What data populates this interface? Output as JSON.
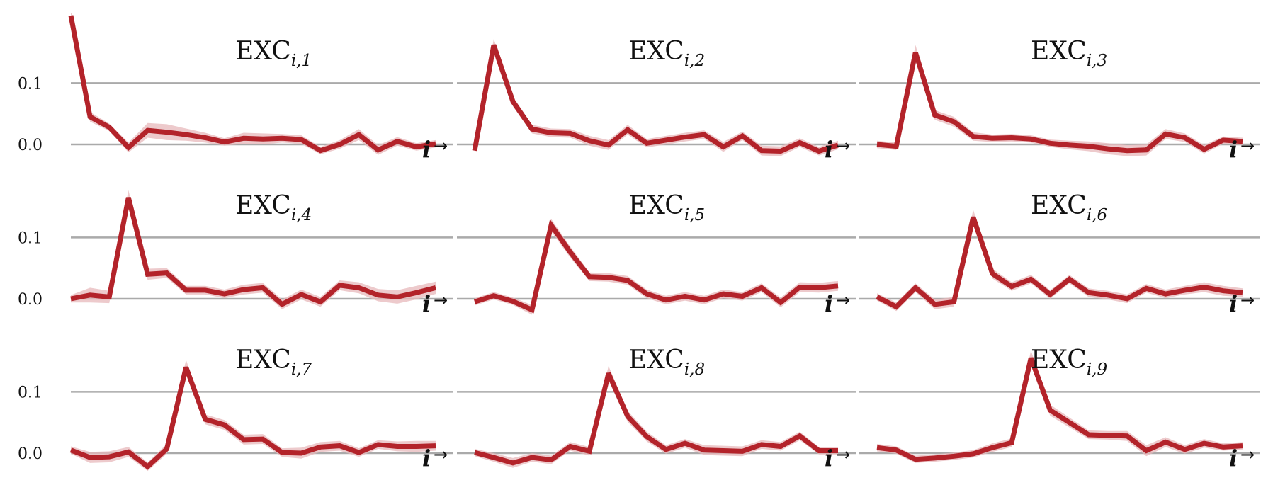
{
  "chart_data": {
    "type": "line",
    "grid_layout": {
      "rows": 3,
      "cols": 3
    },
    "line_color": "#b3232a",
    "band_color": "#e7b8bb",
    "gridline_color": "#aaaaaa",
    "ylim": [
      -0.03,
      0.21
    ],
    "yticks": [
      0.0,
      0.1
    ],
    "ytick_labels": [
      "0.0",
      "0.1"
    ],
    "x": [
      1,
      2,
      3,
      4,
      5,
      6,
      7,
      8,
      9,
      10,
      11,
      12,
      13,
      14,
      15,
      16,
      17,
      18,
      19,
      20
    ],
    "xlabel": "i",
    "xlabel_arrow": "→",
    "panels": [
      {
        "title": "EXC",
        "subscript": "i,1",
        "values": [
          0.21,
          0.045,
          0.028,
          -0.005,
          0.023,
          0.02,
          0.016,
          0.011,
          0.004,
          0.01,
          0.009,
          0.01,
          0.008,
          -0.01,
          0.0,
          0.016,
          -0.009,
          0.005,
          -0.004,
          0.001
        ],
        "band": [
          0.012,
          0.008,
          0.006,
          0.008,
          0.012,
          0.013,
          0.01,
          0.008,
          0.006,
          0.009,
          0.009,
          0.007,
          0.007,
          0.006,
          0.007,
          0.009,
          0.008,
          0.007,
          0.006,
          0.006
        ]
      },
      {
        "title": "EXC",
        "subscript": "i,2",
        "values": [
          -0.01,
          0.162,
          0.07,
          0.025,
          0.019,
          0.018,
          0.006,
          -0.001,
          0.024,
          0.002,
          0.007,
          0.012,
          0.016,
          -0.004,
          0.014,
          -0.01,
          -0.011,
          0.003,
          -0.011,
          -0.001
        ],
        "band": [
          0.008,
          0.01,
          0.008,
          0.007,
          0.007,
          0.007,
          0.008,
          0.008,
          0.008,
          0.007,
          0.007,
          0.007,
          0.007,
          0.008,
          0.007,
          0.008,
          0.008,
          0.007,
          0.007,
          0.007
        ]
      },
      {
        "title": "EXC",
        "subscript": "i,3",
        "values": [
          0.0,
          -0.003,
          0.15,
          0.048,
          0.037,
          0.013,
          0.01,
          0.011,
          0.009,
          0.002,
          -0.001,
          -0.003,
          -0.007,
          -0.01,
          -0.009,
          0.017,
          0.011,
          -0.008,
          0.007,
          0.005
        ],
        "band": [
          0.006,
          0.006,
          0.012,
          0.008,
          0.008,
          0.007,
          0.006,
          0.006,
          0.006,
          0.006,
          0.007,
          0.008,
          0.009,
          0.009,
          0.009,
          0.008,
          0.007,
          0.007,
          0.006,
          0.006
        ]
      },
      {
        "title": "EXC",
        "subscript": "i,4",
        "values": [
          0.0,
          0.006,
          0.003,
          0.165,
          0.04,
          0.042,
          0.014,
          0.014,
          0.008,
          0.015,
          0.018,
          -0.009,
          0.007,
          -0.005,
          0.022,
          0.018,
          0.006,
          0.003,
          0.01,
          0.018
        ],
        "band": [
          0.006,
          0.012,
          0.01,
          0.012,
          0.009,
          0.008,
          0.007,
          0.007,
          0.007,
          0.008,
          0.008,
          0.008,
          0.008,
          0.008,
          0.008,
          0.009,
          0.01,
          0.011,
          0.011,
          0.01
        ]
      },
      {
        "title": "EXC",
        "subscript": "i,5",
        "values": [
          -0.005,
          0.005,
          -0.004,
          -0.018,
          0.12,
          0.076,
          0.036,
          0.035,
          0.03,
          0.008,
          -0.002,
          0.004,
          -0.002,
          0.008,
          0.004,
          0.018,
          -0.006,
          0.019,
          0.018,
          0.021
        ],
        "band": [
          0.006,
          0.006,
          0.006,
          0.008,
          0.01,
          0.009,
          0.007,
          0.007,
          0.007,
          0.007,
          0.007,
          0.007,
          0.007,
          0.007,
          0.007,
          0.007,
          0.008,
          0.008,
          0.008,
          0.008
        ]
      },
      {
        "title": "EXC",
        "subscript": "i,6",
        "values": [
          0.003,
          -0.013,
          0.018,
          -0.009,
          -0.005,
          0.133,
          0.041,
          0.02,
          0.032,
          0.007,
          0.032,
          0.01,
          0.006,
          0.0,
          0.017,
          0.008,
          0.014,
          0.019,
          0.013,
          0.01
        ],
        "band": [
          0.006,
          0.007,
          0.007,
          0.008,
          0.008,
          0.012,
          0.008,
          0.007,
          0.007,
          0.007,
          0.007,
          0.007,
          0.007,
          0.007,
          0.007,
          0.007,
          0.007,
          0.008,
          0.008,
          0.007
        ]
      },
      {
        "title": "EXC",
        "subscript": "i,7",
        "values": [
          0.005,
          -0.007,
          -0.006,
          0.002,
          -0.022,
          0.007,
          0.14,
          0.055,
          0.046,
          0.022,
          0.023,
          0.001,
          0.0,
          0.01,
          0.012,
          0.001,
          0.014,
          0.011,
          0.011,
          0.012
        ],
        "band": [
          0.006,
          0.009,
          0.009,
          0.008,
          0.007,
          0.008,
          0.012,
          0.008,
          0.008,
          0.008,
          0.008,
          0.007,
          0.009,
          0.008,
          0.008,
          0.007,
          0.007,
          0.008,
          0.009,
          0.008
        ]
      },
      {
        "title": "EXC",
        "subscript": "i,8",
        "values": [
          0.001,
          -0.007,
          -0.016,
          -0.007,
          -0.011,
          0.011,
          0.003,
          0.13,
          0.06,
          0.027,
          0.006,
          0.016,
          0.005,
          0.004,
          0.003,
          0.014,
          0.011,
          0.028,
          0.004,
          0.004
        ],
        "band": [
          0.006,
          0.007,
          0.008,
          0.007,
          0.007,
          0.007,
          0.007,
          0.012,
          0.009,
          0.008,
          0.007,
          0.007,
          0.008,
          0.008,
          0.008,
          0.007,
          0.007,
          0.007,
          0.006,
          0.006
        ]
      },
      {
        "title": "EXC",
        "subscript": "i,9",
        "values": [
          0.009,
          0.005,
          -0.01,
          -0.008,
          -0.005,
          -0.001,
          0.009,
          0.017,
          0.155,
          0.07,
          0.05,
          0.03,
          0.029,
          0.028,
          0.004,
          0.018,
          0.006,
          0.016,
          0.01,
          0.012
        ],
        "band": [
          0.006,
          0.006,
          0.006,
          0.006,
          0.006,
          0.006,
          0.007,
          0.007,
          0.012,
          0.009,
          0.008,
          0.007,
          0.007,
          0.008,
          0.009,
          0.008,
          0.007,
          0.007,
          0.006,
          0.006
        ]
      }
    ]
  }
}
